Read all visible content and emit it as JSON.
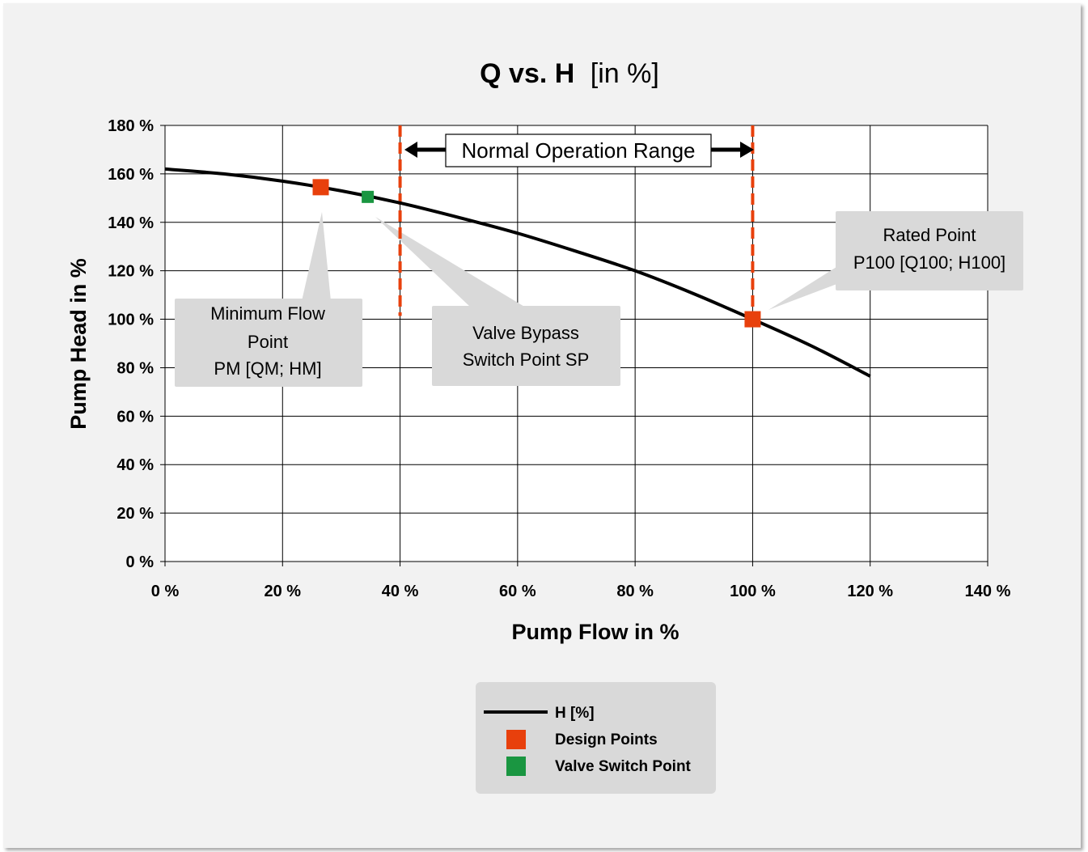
{
  "chart_data": {
    "type": "line",
    "title": "Q  vs.  H [in %]",
    "title_parts": {
      "bold": "Q  vs.  H",
      "normal": "[in %]"
    },
    "xlabel": "Pump Flow in %",
    "ylabel": "Pump Head in %",
    "xlim": [
      0,
      140
    ],
    "ylim": [
      0,
      180
    ],
    "x_ticks": [
      "0 %",
      "20 %",
      "40 %",
      "60 %",
      "80 %",
      "100 %",
      "120 %",
      "140 %"
    ],
    "y_ticks": [
      "0 %",
      "20 %",
      "40 %",
      "60 %",
      "80 %",
      "100 %",
      "120 %",
      "140 %",
      "160 %",
      "180 %"
    ],
    "grid": true,
    "legend_position": "bottom-center",
    "series": [
      {
        "name": "H [%]",
        "color": "#000000",
        "style": "line",
        "x": [
          0,
          10,
          20,
          30,
          40,
          50,
          60,
          70,
          80,
          90,
          100,
          110,
          120
        ],
        "y": [
          162,
          160,
          157,
          153,
          148,
          142,
          135.5,
          128,
          120,
          110.5,
          100,
          89,
          76.5
        ]
      },
      {
        "name": "Design Points",
        "color": "#e8400c",
        "style": "marker",
        "points": [
          {
            "x": 26.5,
            "y": 154.5
          },
          {
            "x": 100,
            "y": 100
          }
        ]
      },
      {
        "name": "Valve Switch Point",
        "color": "#1a9641",
        "style": "marker",
        "points": [
          {
            "x": 34.5,
            "y": 150.5
          }
        ]
      }
    ],
    "reference_lines": [
      {
        "x": 40,
        "color": "#e8400c",
        "style": "dashed"
      },
      {
        "x": 100,
        "color": "#e8400c",
        "style": "dashed"
      }
    ],
    "annotations": {
      "range": {
        "label": "Normal Operation Range",
        "x_from": 40,
        "x_to": 100,
        "y": 170
      },
      "min_flow": [
        "Minimum Flow",
        "Point",
        "PM [QM; HM]"
      ],
      "valve_bypass": [
        "Valve Bypass",
        "Switch Point SP"
      ],
      "rated": [
        "Rated Point",
        "P100 [Q100; H100]"
      ]
    },
    "colors": {
      "design_point": "#e8400c",
      "valve_point": "#1a9641",
      "callout_fill": "#d9d9d9",
      "background": "#f2f2f2"
    }
  }
}
